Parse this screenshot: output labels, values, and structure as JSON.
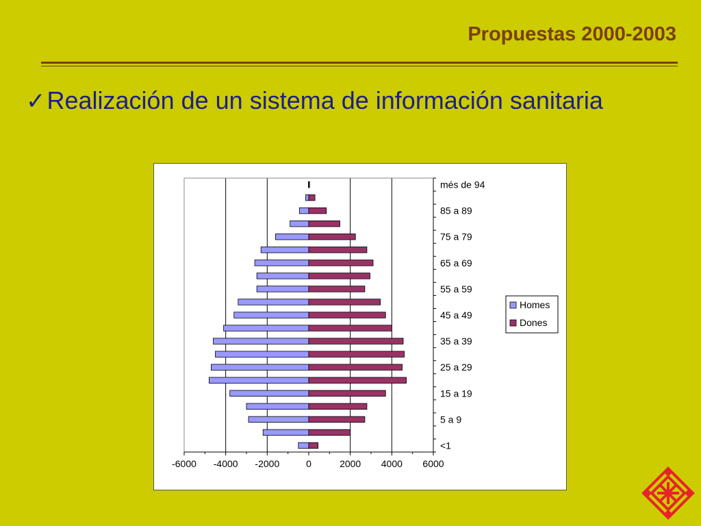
{
  "slide": {
    "title": "Propuestas 2000-2003",
    "bullet_check": "✓",
    "bullet_text": "Realización de un sistema de información sanitaria"
  },
  "colors": {
    "background": "#CCCC00",
    "title": "#7A3E10",
    "bullet_text": "#1E1E8C",
    "homes": "#9999FF",
    "dones": "#993366",
    "logo": "#E8222A"
  },
  "icons": {
    "bullet": "check-icon",
    "logo": "institution-logo-icon"
  },
  "chart_data": {
    "type": "bar",
    "orientation": "horizontal",
    "title": "",
    "xlabel": "",
    "ylabel": "",
    "xlim": [
      -6000,
      6000
    ],
    "x_ticks": [
      "-6000",
      "-4000",
      "-2000",
      "0",
      "2000",
      "4000",
      "6000"
    ],
    "y_tick_labels": [
      "<1",
      "5 a 9",
      "15 a 19",
      "25 a 29",
      "35 a 39",
      "45 a 49",
      "55 a 59",
      "65 a 69",
      "75 a 79",
      "85 a 89",
      "més de 94"
    ],
    "legend_position": "right",
    "grid": "vertical",
    "series": [
      {
        "name": "Homes",
        "values": [
          -500,
          -2200,
          -2900,
          -3000,
          -3800,
          -4800,
          -4700,
          -4500,
          -4600,
          -4100,
          -3600,
          -3400,
          -2500,
          -2500,
          -2600,
          -2300,
          -1600,
          -900,
          -450,
          -150,
          -20
        ]
      },
      {
        "name": "Dones",
        "values": [
          450,
          2000,
          2700,
          2800,
          3700,
          4700,
          4500,
          4600,
          4550,
          4000,
          3700,
          3450,
          2700,
          2950,
          3100,
          2800,
          2250,
          1500,
          850,
          300,
          40
        ]
      }
    ]
  }
}
